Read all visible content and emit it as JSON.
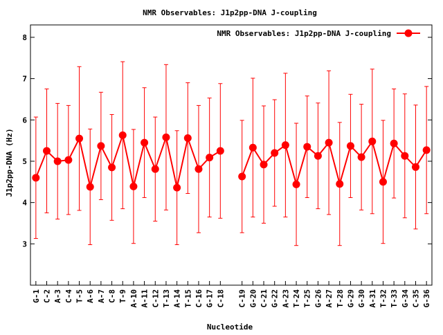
{
  "chart_data": {
    "type": "line",
    "title": "NMR Observables: J1p2pp-DNA J-coupling",
    "xlabel": "Nucleotide",
    "ylabel": "J1p2pp-DNA (Hz)",
    "ylim": [
      2.0,
      8.3
    ],
    "yticks": [
      3,
      4,
      5,
      6,
      7,
      8
    ],
    "grid": false,
    "legend_position": "top-right",
    "series": [
      {
        "name": "NMR Observables: J1p2pp-DNA J-coupling",
        "color": "#ff0000",
        "marker": "circle",
        "error_bars": true,
        "segments": [
          {
            "categories": [
              "G-1",
              "C-2",
              "A-3",
              "C-4",
              "T-5",
              "A-6",
              "A-7",
              "C-8",
              "T-9",
              "A-10",
              "A-11",
              "C-12",
              "T-13",
              "A-14",
              "T-15",
              "C-16",
              "G-17",
              "C-18"
            ],
            "values": [
              4.6,
              5.25,
              5.0,
              5.03,
              5.55,
              4.38,
              5.37,
              4.85,
              5.63,
              4.39,
              5.45,
              4.81,
              5.58,
              4.36,
              5.56,
              4.81,
              5.09,
              5.25
            ],
            "errors": [
              1.47,
              1.5,
              1.4,
              1.32,
              1.74,
              1.4,
              1.3,
              1.28,
              1.78,
              1.38,
              1.33,
              1.26,
              1.76,
              1.38,
              1.34,
              1.54,
              1.44,
              1.63
            ]
          },
          {
            "categories": [
              "C-19",
              "G-20",
              "C-21",
              "G-22",
              "A-23",
              "T-24",
              "T-25",
              "G-26",
              "A-27",
              "T-28",
              "G-29",
              "G-30",
              "A-31",
              "T-32",
              "T-33",
              "G-34",
              "C-35",
              "G-36"
            ],
            "values": [
              4.63,
              5.33,
              4.92,
              5.2,
              5.39,
              4.44,
              5.35,
              5.13,
              5.45,
              4.45,
              5.37,
              5.1,
              5.48,
              4.5,
              5.43,
              5.13,
              4.86,
              5.27
            ],
            "errors": [
              1.36,
              1.68,
              1.42,
              1.29,
              1.74,
              1.48,
              1.23,
              1.28,
              1.74,
              1.49,
              1.25,
              1.28,
              1.75,
              1.49,
              1.32,
              1.5,
              1.5,
              1.54
            ]
          }
        ]
      }
    ],
    "categories": [
      "G-1",
      "C-2",
      "A-3",
      "C-4",
      "T-5",
      "A-6",
      "A-7",
      "C-8",
      "T-9",
      "A-10",
      "A-11",
      "C-12",
      "T-13",
      "A-14",
      "T-15",
      "C-16",
      "G-17",
      "C-18",
      "",
      "C-19",
      "G-20",
      "C-21",
      "G-22",
      "A-23",
      "T-24",
      "T-25",
      "G-26",
      "A-27",
      "T-28",
      "G-29",
      "G-30",
      "A-31",
      "T-32",
      "T-33",
      "G-34",
      "C-35",
      "G-36"
    ]
  }
}
